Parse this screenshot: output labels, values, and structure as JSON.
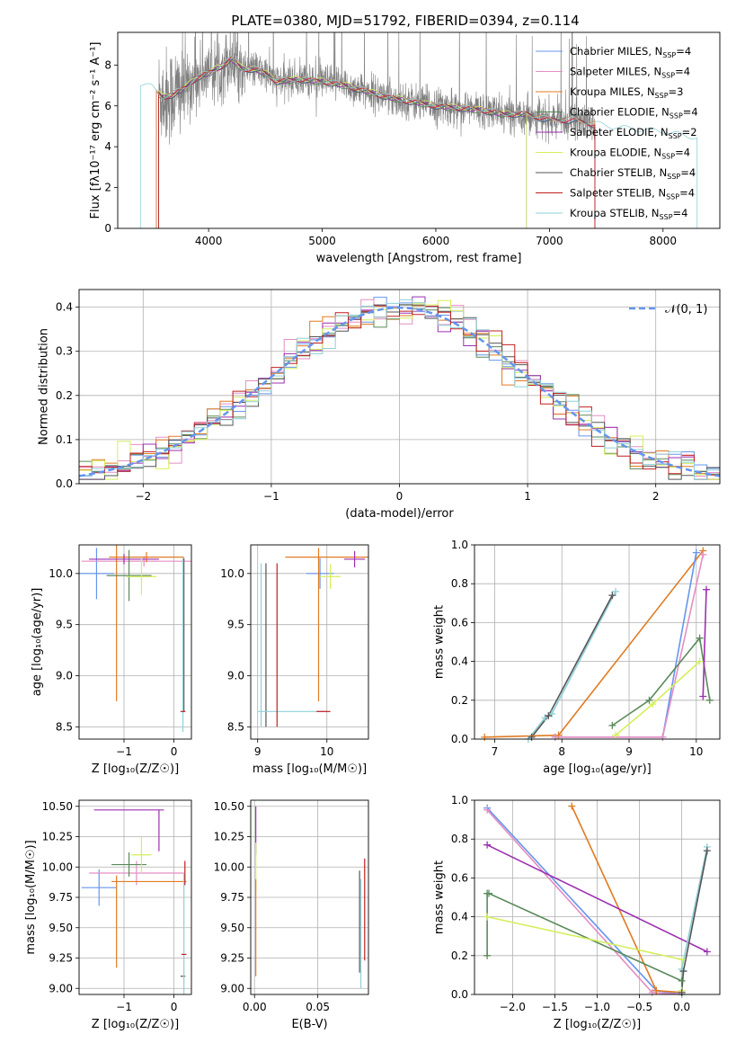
{
  "colors": {
    "chabrier_miles": "#6495ed",
    "salpeter_miles": "#e58ec4",
    "kroupa_miles": "#e07b22",
    "chabrier_elodie": "#5a8a5a",
    "salpeter_elodie": "#9b30b0",
    "kroupa_elodie": "#d4ef5a",
    "chabrier_stelib": "#555555",
    "salpeter_stelib": "#c02020",
    "kroupa_stelib": "#8fd0d8",
    "data": "#808080",
    "grid": "#b0b0b0"
  },
  "chart_data": [
    {
      "id": "spectrum",
      "type": "line",
      "title": "PLATE=0380, MJD=51792, FIBERID=0394, z=0.114",
      "xlabel": "wavelength [Angstrom, rest frame]",
      "ylabel": "Flux [fλ10⁻¹⁷ erg cm⁻² s⁻¹ A⁻¹]",
      "xlim": [
        3200,
        8500
      ],
      "ylim": [
        0,
        9.6
      ],
      "xticks": [
        "4000",
        "5000",
        "6000",
        "7000",
        "8000"
      ],
      "yticks": [
        "0",
        "2",
        "4",
        "6",
        "8"
      ],
      "grid": false,
      "legend_position": "top-right",
      "legend": [
        {
          "label": "Chabrier MILES, N",
          "sub": "SSP",
          "suffix": "=4",
          "color": "chabrier_miles"
        },
        {
          "label": "Salpeter MILES, N",
          "sub": "SSP",
          "suffix": "=4",
          "color": "salpeter_miles"
        },
        {
          "label": "Kroupa MILES, N",
          "sub": "SSP",
          "suffix": "=3",
          "color": "kroupa_miles"
        },
        {
          "label": "Chabrier ELODIE, N",
          "sub": "SSP",
          "suffix": "=4",
          "color": "chabrier_elodie"
        },
        {
          "label": "Salpeter ELODIE, N",
          "sub": "SSP",
          "suffix": "=2",
          "color": "salpeter_elodie"
        },
        {
          "label": "Kroupa ELODIE, N",
          "sub": "SSP",
          "suffix": "=4",
          "color": "kroupa_elodie"
        },
        {
          "label": "Chabrier STELIB, N",
          "sub": "SSP",
          "suffix": "=4",
          "color": "chabrier_stelib"
        },
        {
          "label": "Salpeter STELIB, N",
          "sub": "SSP",
          "suffix": "=4",
          "color": "salpeter_stelib"
        },
        {
          "label": "Kroupa STELIB, N",
          "sub": "SSP",
          "suffix": "=4",
          "color": "kroupa_stelib"
        }
      ],
      "model_x": [
        3400,
        3500,
        3600,
        3700,
        3800,
        3900,
        4000,
        4100,
        4200,
        4300,
        4400,
        4500,
        4600,
        4800,
        5000,
        5200,
        5400,
        5600,
        5800,
        6000,
        6200,
        6400,
        6600,
        6800,
        7000,
        7200,
        7400,
        7600,
        7800,
        8000,
        8200,
        8300
      ],
      "model_y": [
        7.0,
        6.9,
        6.4,
        6.6,
        6.9,
        7.4,
        7.6,
        7.9,
        8.3,
        7.8,
        7.8,
        7.6,
        7.2,
        7.3,
        7.2,
        7.0,
        6.7,
        6.4,
        6.2,
        6.0,
        5.9,
        5.8,
        5.6,
        5.6,
        5.3,
        5.3,
        5.1,
        4.9,
        4.8,
        4.7,
        4.5,
        4.4
      ]
    },
    {
      "id": "residuals",
      "type": "line",
      "xlabel": "(data-model)/error",
      "ylabel": "Normed distribution",
      "xlim": [
        -2.5,
        2.5
      ],
      "ylim": [
        0,
        0.44
      ],
      "xticks": [
        "−2",
        "−1",
        "0",
        "1",
        "2"
      ],
      "yticks": [
        "0.0",
        "0.1",
        "0.2",
        "0.3",
        "0.4"
      ],
      "grid": true,
      "legend_position": "top-right",
      "legend": [
        {
          "label": "𝒩(0, 1)",
          "color": "chabrier_miles",
          "dashed": true
        }
      ],
      "bin_edges_start": -2.5,
      "bin_width": 0.1
    },
    {
      "id": "age_vs_Z",
      "type": "scatter",
      "xlabel": "Z [log₁₀(Z/Z☉)]",
      "ylabel": "age  [log₁₀(age/yr)]",
      "xlim": [
        -1.9,
        0.35
      ],
      "ylim": [
        8.38,
        10.28
      ],
      "xticks": [
        "−1",
        "0"
      ],
      "yticks": [
        "8.5",
        "9.0",
        "9.5",
        "10.0"
      ],
      "grid": true,
      "points": [
        {
          "color": "chabrier_miles",
          "x": -1.55,
          "y": 10.0,
          "xerr": 0.35,
          "yerr": 0.25
        },
        {
          "color": "salpeter_miles",
          "x": -0.6,
          "y": 10.12,
          "xerr": 1.25,
          "yerr": 0.05
        },
        {
          "color": "kroupa_miles",
          "x": -0.55,
          "y": 10.16,
          "xerr": 0.75,
          "yerr": 0.05
        },
        {
          "color": "kroupa_miles",
          "x": -1.15,
          "y": 9.6,
          "xerr": 0.0,
          "yerr": 0.85
        },
        {
          "color": "chabrier_elodie",
          "x": -0.9,
          "y": 9.98,
          "xerr": 0.45,
          "yerr": 0.25
        },
        {
          "color": "salpeter_elodie",
          "x": -1.0,
          "y": 10.14,
          "xerr": 0.7,
          "yerr": 0.05
        },
        {
          "color": "kroupa_elodie",
          "x": -0.65,
          "y": 9.97,
          "xerr": 0.3,
          "yerr": 0.18
        },
        {
          "color": "chabrier_stelib",
          "x": 0.2,
          "y": 9.4,
          "xerr": 0.0,
          "yerr": 0.75
        },
        {
          "color": "kroupa_stelib",
          "x": 0.18,
          "y": 9.3,
          "xerr": 0.0,
          "yerr": 0.85
        },
        {
          "color": "salpeter_stelib",
          "x": 0.18,
          "y": 8.65,
          "xerr": 0.05,
          "yerr": 0.0
        }
      ]
    },
    {
      "id": "age_vs_mass",
      "type": "scatter",
      "xlabel": "mass [log₁₀(M/M☉)]",
      "ylabel": "",
      "xlim": [
        8.9,
        10.6
      ],
      "ylim": [
        8.38,
        10.28
      ],
      "xticks": [
        "9",
        "10"
      ],
      "yticks": [
        "8.5",
        "9.0",
        "9.5",
        "10.0"
      ],
      "grid": true,
      "points": [
        {
          "color": "chabrier_miles",
          "x": 9.9,
          "y": 10.0,
          "xerr": 0.2,
          "yerr": 0.15
        },
        {
          "color": "kroupa_miles",
          "x": 9.88,
          "y": 9.5,
          "xerr": 0.0,
          "yerr": 0.75
        },
        {
          "color": "kroupa_miles",
          "x": 10.0,
          "y": 10.16,
          "xerr": 0.6,
          "yerr": 0.0
        },
        {
          "color": "salpeter_elodie",
          "x": 10.4,
          "y": 10.14,
          "xerr": 0.15,
          "yerr": 0.08
        },
        {
          "color": "kroupa_elodie",
          "x": 10.05,
          "y": 9.97,
          "xerr": 0.15,
          "yerr": 0.12
        },
        {
          "color": "chabrier_stelib",
          "x": 9.12,
          "y": 9.3,
          "xerr": 0.0,
          "yerr": 0.8
        },
        {
          "color": "kroupa_stelib",
          "x": 9.5,
          "y": 8.65,
          "xerr": 0.5,
          "yerr": 0.0
        },
        {
          "color": "kroupa_stelib",
          "x": 9.05,
          "y": 9.3,
          "xerr": 0.0,
          "yerr": 0.8
        },
        {
          "color": "salpeter_stelib",
          "x": 9.28,
          "y": 9.3,
          "xerr": 0.0,
          "yerr": 0.8
        },
        {
          "color": "salpeter_stelib",
          "x": 9.95,
          "y": 8.65,
          "xerr": 0.1,
          "yerr": 0.0
        }
      ]
    },
    {
      "id": "weight_vs_age",
      "type": "line",
      "xlabel": "age  [log₁₀(age/yr)]",
      "ylabel": "mass weight",
      "xlim": [
        6.7,
        10.35
      ],
      "ylim": [
        0,
        1.0
      ],
      "xticks": [
        "7",
        "8",
        "9",
        "10"
      ],
      "yticks": [
        "0.0",
        "0.2",
        "0.4",
        "0.6",
        "0.8",
        "1.0"
      ],
      "grid": true,
      "series": [
        {
          "color": "kroupa_stelib",
          "x": [
            7.5,
            7.75,
            7.85,
            8.8
          ],
          "y": [
            0.0,
            0.11,
            0.13,
            0.76
          ]
        },
        {
          "color": "chabrier_stelib",
          "x": [
            7.55,
            7.8,
            8.75
          ],
          "y": [
            0.01,
            0.12,
            0.74
          ]
        },
        {
          "color": "kroupa_miles",
          "x": [
            6.85,
            7.95,
            10.1
          ],
          "y": [
            0.01,
            0.02,
            0.97
          ]
        },
        {
          "color": "chabrier_miles",
          "x": [
            7.9,
            9.5,
            10.0
          ],
          "y": [
            0.01,
            0.01,
            0.96
          ]
        },
        {
          "color": "salpeter_miles",
          "x": [
            7.9,
            9.5,
            10.1
          ],
          "y": [
            0.01,
            0.01,
            0.95
          ]
        },
        {
          "color": "chabrier_elodie",
          "x": [
            8.75,
            9.3,
            10.05,
            10.2
          ],
          "y": [
            0.07,
            0.2,
            0.52,
            0.2
          ]
        },
        {
          "color": "kroupa_elodie",
          "x": [
            8.8,
            9.35,
            10.05
          ],
          "y": [
            0.02,
            0.18,
            0.4
          ]
        },
        {
          "color": "salpeter_elodie",
          "x": [
            10.1,
            10.15
          ],
          "y": [
            0.22,
            0.77
          ]
        }
      ]
    },
    {
      "id": "mass_vs_Z",
      "type": "scatter",
      "xlabel": "Z [log₁₀(Z/Z☉)]",
      "ylabel": "mass [log₁₀(M/M☉)]",
      "xlim": [
        -1.9,
        0.35
      ],
      "ylim": [
        8.95,
        10.55
      ],
      "xticks": [
        "−1",
        "0"
      ],
      "yticks": [
        "9.00",
        "9.25",
        "9.50",
        "9.75",
        "10.00",
        "10.25",
        "10.50"
      ],
      "grid": true,
      "points": [
        {
          "color": "chabrier_miles",
          "x": -1.5,
          "y": 9.83,
          "xerr": 0.35,
          "yerr": 0.15
        },
        {
          "color": "salpeter_miles",
          "x": -0.75,
          "y": 9.95,
          "xerr": 0.95,
          "yerr": 0.1
        },
        {
          "color": "kroupa_miles",
          "x": -0.5,
          "y": 9.88,
          "xerr": 0.75,
          "yerr": 0.0
        },
        {
          "color": "kroupa_miles",
          "x": -1.15,
          "y": 9.55,
          "xerr": 0.0,
          "yerr": 0.38
        },
        {
          "color": "chabrier_elodie",
          "x": -0.9,
          "y": 10.02,
          "xerr": 0.35,
          "yerr": 0.1
        },
        {
          "color": "salpeter_elodie",
          "x": -0.9,
          "y": 10.47,
          "xerr": 0.7,
          "yerr": 0.0
        },
        {
          "color": "salpeter_elodie",
          "x": -0.3,
          "y": 10.3,
          "xerr": 0.0,
          "yerr": 0.17
        },
        {
          "color": "kroupa_elodie",
          "x": -0.65,
          "y": 10.1,
          "xerr": 0.2,
          "yerr": 0.15
        },
        {
          "color": "chabrier_stelib",
          "x": 0.18,
          "y": 9.1,
          "xerr": 0.05,
          "yerr": 0.0
        },
        {
          "color": "kroupa_stelib",
          "x": 0.2,
          "y": 9.45,
          "xerr": 0.0,
          "yerr": 0.5
        },
        {
          "color": "salpeter_stelib",
          "x": 0.2,
          "y": 9.28,
          "xerr": 0.05,
          "yerr": 0.0
        },
        {
          "color": "salpeter_stelib",
          "x": 0.22,
          "y": 9.95,
          "xerr": 0.0,
          "yerr": 0.1
        }
      ]
    },
    {
      "id": "mass_vs_EBV",
      "type": "scatter",
      "xlabel": "E(B-V)",
      "ylabel": "",
      "xlim": [
        -0.003,
        0.09
      ],
      "ylim": [
        8.95,
        10.55
      ],
      "xticks": [
        "0.00",
        "0.05"
      ],
      "yticks": [
        "9.00",
        "9.25",
        "9.50",
        "9.75",
        "10.00",
        "10.25",
        "10.50"
      ],
      "grid": true,
      "points": [
        {
          "color": "salpeter_elodie",
          "x": 0.001,
          "y": 10.3,
          "xerr": 0.0,
          "yerr": 0.2
        },
        {
          "color": "kroupa_elodie",
          "x": 0.001,
          "y": 10.0,
          "xerr": 0.0,
          "yerr": 0.2
        },
        {
          "color": "kroupa_miles",
          "x": 0.001,
          "y": 9.5,
          "xerr": 0.0,
          "yerr": 0.4
        },
        {
          "color": "chabrier_stelib",
          "x": 0.083,
          "y": 9.55,
          "xerr": 0.0,
          "yerr": 0.42
        },
        {
          "color": "kroupa_stelib",
          "x": 0.084,
          "y": 9.45,
          "xerr": 0.0,
          "yerr": 0.45
        },
        {
          "color": "salpeter_stelib",
          "x": 0.087,
          "y": 9.65,
          "xerr": 0.0,
          "yerr": 0.42
        }
      ]
    },
    {
      "id": "weight_vs_Z",
      "type": "line",
      "xlabel": "Z [log₁₀(Z/Z☉)]",
      "ylabel": "mass weight",
      "xlim": [
        -2.45,
        0.45
      ],
      "ylim": [
        0,
        1.0
      ],
      "xticks": [
        "−2.0",
        "−1.5",
        "−1.0",
        "−0.5",
        "0.0"
      ],
      "yticks": [
        "0.0",
        "0.2",
        "0.4",
        "0.6",
        "0.8",
        "1.0"
      ],
      "grid": true,
      "series": [
        {
          "color": "chabrier_miles",
          "x": [
            -2.3,
            -0.3,
            0.0
          ],
          "y": [
            0.96,
            0.02,
            0.0
          ]
        },
        {
          "color": "salpeter_miles",
          "x": [
            -2.3,
            -0.35,
            0.0
          ],
          "y": [
            0.95,
            0.01,
            0.0
          ]
        },
        {
          "color": "kroupa_miles",
          "x": [
            -1.3,
            -0.3,
            0.0
          ],
          "y": [
            0.97,
            0.02,
            0.01
          ]
        },
        {
          "color": "salpeter_elodie",
          "x": [
            -2.3,
            0.3
          ],
          "y": [
            0.77,
            0.22
          ]
        },
        {
          "color": "chabrier_elodie",
          "x": [
            -2.3,
            -2.3,
            -2.28,
            0.0
          ],
          "y": [
            0.2,
            0.52,
            0.52,
            0.07
          ]
        },
        {
          "color": "kroupa_elodie",
          "x": [
            -2.3,
            0.0,
            0.0
          ],
          "y": [
            0.4,
            0.18,
            0.02
          ]
        },
        {
          "color": "kroupa_stelib",
          "x": [
            0.0,
            0.0,
            0.3
          ],
          "y": [
            0.0,
            0.13,
            0.76
          ]
        },
        {
          "color": "chabrier_stelib",
          "x": [
            0.0,
            0.02,
            0.3
          ],
          "y": [
            0.01,
            0.12,
            0.74
          ]
        }
      ]
    }
  ]
}
